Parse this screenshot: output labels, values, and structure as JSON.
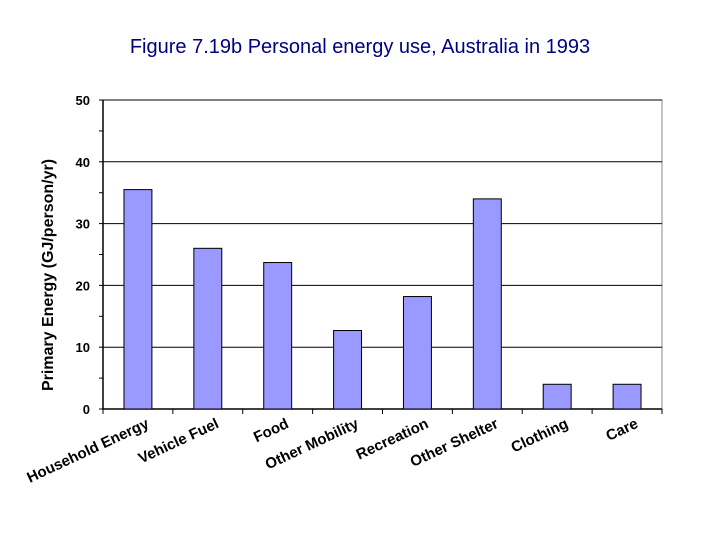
{
  "chart_data": {
    "type": "bar",
    "title": "Figure 7.19b Personal energy use, Australia in 1993",
    "xlabel": "",
    "ylabel": "Primary Energy (GJ/person/yr)",
    "ylim": [
      0,
      50
    ],
    "yticks": [
      0,
      10,
      20,
      30,
      40,
      50
    ],
    "grid": true,
    "categories": [
      "Household Energy",
      "Vehicle Fuel",
      "Food",
      "Other Mobility",
      "Recreation",
      "Other Shelter",
      "Clothing",
      "Care"
    ],
    "values": [
      35.5,
      26,
      23.7,
      12.7,
      18.2,
      34,
      4,
      4
    ],
    "bar_color": "#9999ff",
    "plot_background": "#ffffff",
    "gridline_color": "#000000"
  }
}
